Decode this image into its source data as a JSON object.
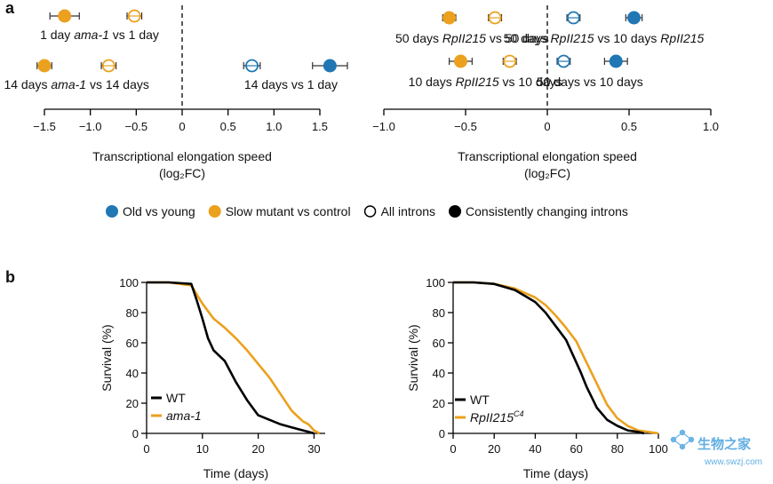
{
  "panels": {
    "a": "a",
    "b": "b"
  },
  "colors": {
    "old_vs_young": "#2177b4",
    "slow_mutant": "#eba11e",
    "wt": "#000000",
    "axis": "#000000"
  },
  "legend_a": [
    {
      "label": "Old vs young",
      "color": "#2177b4",
      "style": "filled"
    },
    {
      "label": "Slow mutant vs control",
      "color": "#eba11e",
      "style": "filled"
    },
    {
      "label": "All introns",
      "color": "#000000",
      "style": "open"
    },
    {
      "label": "Consistently changing introns",
      "color": "#000000",
      "style": "filled"
    }
  ],
  "watermark": {
    "text": "生物之家",
    "url": "www.swzj.com",
    "color": "#3a9bdc"
  },
  "chart_data": [
    {
      "type": "scatter",
      "name": "elongation-left",
      "xlabel": "Transcriptional elongation speed",
      "xlabel_unit": "(log₂FC)",
      "xlim": [
        -1.5,
        1.5
      ],
      "xticks": [
        "-1.5",
        "-1.0",
        "-0.5",
        "0",
        "0.5",
        "1.0",
        "1.5"
      ],
      "groups": [
        {
          "label_parts": [
            "1 day ",
            "ama-1",
            " vs 1 day"
          ],
          "row": 1,
          "points": [
            {
              "x": -1.28,
              "err": 0.16,
              "color": "#eba11e",
              "style": "filled"
            },
            {
              "x": -0.52,
              "err": 0.08,
              "color": "#eba11e",
              "style": "open"
            }
          ]
        },
        {
          "label_parts": [
            "14 days ",
            "ama-1",
            " vs 14 days"
          ],
          "row": 2,
          "points": [
            {
              "x": -1.5,
              "err": 0.08,
              "color": "#eba11e",
              "style": "filled"
            },
            {
              "x": -0.8,
              "err": 0.08,
              "color": "#eba11e",
              "style": "open"
            }
          ]
        },
        {
          "label_parts": [
            "14 days vs 1 day"
          ],
          "row": 2,
          "points": [
            {
              "x": 0.76,
              "err": 0.09,
              "color": "#2177b4",
              "style": "open"
            },
            {
              "x": 1.61,
              "err": 0.19,
              "color": "#2177b4",
              "style": "filled"
            }
          ]
        }
      ]
    },
    {
      "type": "scatter",
      "name": "elongation-right",
      "xlabel": "Transcriptional elongation speed",
      "xlabel_unit": "(log₂FC)",
      "xlim": [
        -1.0,
        1.0
      ],
      "xticks": [
        "-1.0",
        "-0.5",
        "0",
        "0.5",
        "1.0"
      ],
      "groups": [
        {
          "label_parts": [
            "50 days ",
            "RpII215",
            " vs 50 days"
          ],
          "row": 1,
          "points": [
            {
              "x": -0.6,
              "err": 0.04,
              "color": "#eba11e",
              "style": "filled"
            },
            {
              "x": -0.32,
              "err": 0.04,
              "color": "#eba11e",
              "style": "open"
            }
          ]
        },
        {
          "label_parts": [
            "50 days ",
            "RpII215",
            " vs 10 days ",
            "RpII215"
          ],
          "row": 1,
          "points": [
            {
              "x": 0.16,
              "err": 0.04,
              "color": "#2177b4",
              "style": "open"
            },
            {
              "x": 0.53,
              "err": 0.05,
              "color": "#2177b4",
              "style": "filled"
            }
          ]
        },
        {
          "label_parts": [
            "10 days ",
            "RpII215",
            " vs 10 days"
          ],
          "row": 2,
          "points": [
            {
              "x": -0.53,
              "err": 0.07,
              "color": "#eba11e",
              "style": "filled"
            },
            {
              "x": -0.23,
              "err": 0.04,
              "color": "#eba11e",
              "style": "open"
            }
          ]
        },
        {
          "label_parts": [
            "50 days vs 10 days"
          ],
          "row": 2,
          "points": [
            {
              "x": 0.1,
              "err": 0.04,
              "color": "#2177b4",
              "style": "open"
            },
            {
              "x": 0.42,
              "err": 0.07,
              "color": "#2177b4",
              "style": "filled"
            }
          ]
        }
      ]
    },
    {
      "type": "line",
      "name": "survival-ama1",
      "xlabel": "Time (days)",
      "ylabel": "Survival (%)",
      "xlim": [
        0,
        32
      ],
      "ylim": [
        0,
        100
      ],
      "xticks": [
        "0",
        "10",
        "20",
        "30"
      ],
      "yticks": [
        "0",
        "20",
        "40",
        "60",
        "80",
        "100"
      ],
      "series": [
        {
          "name": "WT",
          "italic": false,
          "color": "#000000",
          "x": [
            0,
            4,
            8,
            9,
            10,
            11,
            12,
            14,
            16,
            18,
            20,
            22,
            24,
            26,
            28,
            29,
            30
          ],
          "y": [
            100,
            100,
            99,
            88,
            76,
            63,
            55,
            48,
            34,
            22,
            12,
            9,
            6,
            4,
            2,
            1,
            0
          ]
        },
        {
          "name": "ama-1",
          "italic": true,
          "color": "#eba11e",
          "x": [
            0,
            4,
            8,
            10,
            12,
            14,
            16,
            18,
            20,
            22,
            24,
            26,
            28,
            29,
            30,
            31
          ],
          "y": [
            100,
            100,
            98,
            86,
            76,
            70,
            63,
            55,
            46,
            37,
            26,
            15,
            8,
            6,
            2,
            0
          ]
        }
      ]
    },
    {
      "type": "line",
      "name": "survival-rpii215",
      "xlabel": "Time (days)",
      "ylabel": "Survival (%)",
      "xlim": [
        0,
        100
      ],
      "ylim": [
        0,
        100
      ],
      "xticks": [
        "0",
        "20",
        "40",
        "60",
        "80",
        "100"
      ],
      "yticks": [
        "0",
        "20",
        "40",
        "60",
        "80",
        "100"
      ],
      "series": [
        {
          "name": "WT",
          "italic": false,
          "color": "#000000",
          "x": [
            0,
            10,
            20,
            30,
            35,
            40,
            45,
            50,
            55,
            60,
            62,
            65,
            70,
            75,
            80,
            85,
            90,
            93
          ],
          "y": [
            100,
            100,
            99,
            95,
            91,
            87,
            80,
            71,
            62,
            47,
            41,
            31,
            17,
            9,
            5,
            2,
            1,
            0
          ]
        },
        {
          "name": "RpII215",
          "sup": "C4",
          "italic": true,
          "color": "#eba11e",
          "x": [
            0,
            10,
            20,
            30,
            35,
            40,
            45,
            50,
            55,
            60,
            65,
            70,
            75,
            80,
            85,
            90,
            95,
            100
          ],
          "y": [
            100,
            100,
            99,
            96,
            93,
            90,
            85,
            78,
            70,
            61,
            47,
            33,
            19,
            10,
            5,
            2,
            1,
            0
          ]
        }
      ]
    }
  ]
}
